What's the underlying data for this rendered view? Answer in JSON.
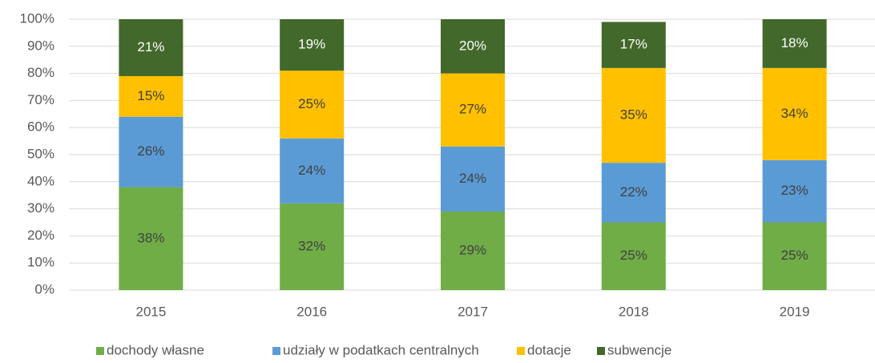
{
  "chart_data": {
    "type": "stacked_bar",
    "categories": [
      "2015",
      "2016",
      "2017",
      "2018",
      "2019"
    ],
    "series": [
      {
        "name": "dochody własne",
        "color": "#70ad47",
        "label_color": "#404040",
        "values": [
          38,
          32,
          29,
          25,
          25
        ],
        "value_labels": [
          "38%",
          "32%",
          "29%",
          "25%",
          "25%"
        ]
      },
      {
        "name": "udziały w podatkach centralnych",
        "color": "#5b9bd5",
        "label_color": "#404040",
        "values": [
          26,
          24,
          24,
          22,
          23
        ],
        "value_labels": [
          "26%",
          "24%",
          "24%",
          "22%",
          "23%"
        ]
      },
      {
        "name": "dotacje",
        "color": "#ffc000",
        "label_color": "#404040",
        "values": [
          15,
          25,
          27,
          35,
          34
        ],
        "value_labels": [
          "15%",
          "25%",
          "27%",
          "35%",
          "34%"
        ]
      },
      {
        "name": "subwencje",
        "color": "#43682b",
        "label_color": "#ffffff",
        "values": [
          21,
          19,
          20,
          17,
          18
        ],
        "value_labels": [
          "21%",
          "19%",
          "20%",
          "17%",
          "18%"
        ]
      }
    ],
    "ylim": [
      0,
      100
    ],
    "yticks": [
      {
        "value": 0,
        "label": "0%"
      },
      {
        "value": 10,
        "label": "10%"
      },
      {
        "value": 20,
        "label": "20%"
      },
      {
        "value": 30,
        "label": "30%"
      },
      {
        "value": 40,
        "label": "40%"
      },
      {
        "value": 50,
        "label": "50%"
      },
      {
        "value": 60,
        "label": "60%"
      },
      {
        "value": 70,
        "label": "70%"
      },
      {
        "value": 80,
        "label": "80%"
      },
      {
        "value": 90,
        "label": "90%"
      },
      {
        "value": 100,
        "label": "100%"
      }
    ],
    "grid": true,
    "legend": "bottom"
  }
}
